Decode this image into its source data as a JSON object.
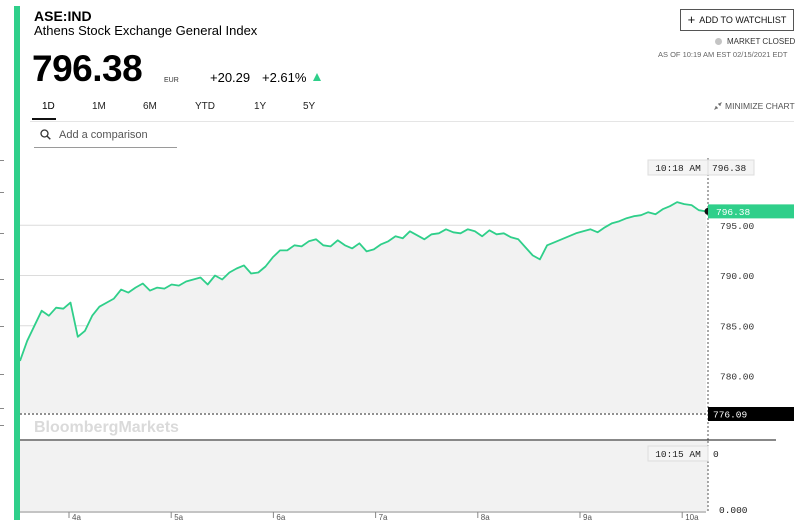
{
  "header": {
    "ticker": "ASE:IND",
    "name": "Athens Stock Exchange General Index",
    "price": "796.38",
    "currency": "EUR",
    "change": "+20.29",
    "change_pct": "+2.61%"
  },
  "watchlist": {
    "label": "ADD TO WATCHLIST"
  },
  "market": {
    "status": "MARKET CLOSED",
    "as_of": "AS OF 10:19 AM EST 02/15/2021 EDT"
  },
  "tabs": [
    "1D",
    "1M",
    "6M",
    "YTD",
    "1Y",
    "5Y"
  ],
  "active_tab": "1D",
  "minimize_label": "MINIMIZE CHART",
  "search": {
    "placeholder": "Add a comparison"
  },
  "watermark": "BloombergMarkets",
  "colors": {
    "accent": "#2fcf8a",
    "line": "#2fcf8a",
    "area": "#f2f2f2",
    "last_bg": "#2fcf8a",
    "prev_close_bg": "#000000"
  },
  "chart_data": {
    "type": "line",
    "series": [
      {
        "values": [
          781.5,
          783.5,
          785.0,
          786.5,
          786.0,
          786.8,
          786.7,
          787.3,
          783.9,
          784.5,
          786.0,
          786.9,
          787.3,
          787.7,
          788.6,
          788.3,
          788.8,
          789.2,
          788.5,
          788.8,
          788.7,
          789.1,
          789.0,
          789.4,
          789.6,
          789.8,
          789.1,
          790.0,
          789.6,
          790.3,
          790.7,
          791.0,
          790.2,
          790.3,
          790.9,
          791.8,
          792.5,
          792.5,
          793.0,
          792.9,
          793.4,
          793.6,
          793.0,
          792.9,
          793.5,
          793.0,
          792.7,
          793.2,
          792.4,
          792.6,
          793.1,
          793.4,
          793.9,
          793.7,
          794.4,
          794.0,
          793.6,
          794.1,
          794.2,
          794.6,
          794.3,
          794.2,
          794.6,
          794.4,
          793.9,
          794.5,
          794.1,
          794.2,
          793.8,
          793.6,
          792.8,
          792.0,
          791.6,
          793.0,
          793.3,
          793.6,
          793.9,
          794.2,
          794.4,
          794.6,
          794.3,
          794.8,
          795.2,
          795.4,
          795.7,
          795.9,
          796.0,
          796.3,
          796.1,
          796.6,
          796.9,
          797.3,
          797.1,
          797.0,
          796.5,
          796.38
        ]
      }
    ],
    "x_ticks": [
      "4a",
      "5a",
      "6a",
      "7a",
      "8a",
      "9a",
      "10a"
    ],
    "y_ticks": [
      "795.00",
      "790.00",
      "785.00",
      "780.00"
    ],
    "ylim": [
      775,
      800
    ],
    "last_value": "796.38",
    "last_time": "10:18 AM",
    "previous_close": "776.09",
    "volume": {
      "time": "10:15 AM",
      "value": "0",
      "y_tick": "0.000"
    }
  }
}
